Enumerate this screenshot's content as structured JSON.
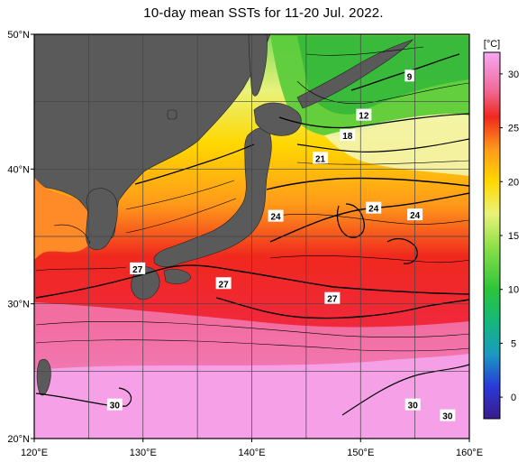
{
  "title": "10-day mean SSTs for 11-20 Jul. 2022.",
  "map": {
    "lon_range": [
      120,
      160
    ],
    "lat_range": [
      20,
      50
    ],
    "lon_ticks": [
      {
        "value": 120,
        "label": "120°E"
      },
      {
        "value": 130,
        "label": "130°E"
      },
      {
        "value": 140,
        "label": "140°E"
      },
      {
        "value": 150,
        "label": "150°E"
      },
      {
        "value": 160,
        "label": "160°E"
      }
    ],
    "lat_ticks": [
      {
        "value": 20,
        "label": "20°N"
      },
      {
        "value": 30,
        "label": "30°N"
      },
      {
        "value": 40,
        "label": "40°N"
      },
      {
        "value": 50,
        "label": "50°N"
      }
    ],
    "land_color": "#5a5a5a",
    "contour_labels": [
      {
        "text": "9",
        "lon": 154.5,
        "lat": 46.9
      },
      {
        "text": "12",
        "lon": 150.3,
        "lat": 44.0
      },
      {
        "text": "18",
        "lon": 148.8,
        "lat": 42.5
      },
      {
        "text": "21",
        "lon": 146.3,
        "lat": 40.8
      },
      {
        "text": "24",
        "lon": 142.2,
        "lat": 36.5
      },
      {
        "text": "24",
        "lon": 151.2,
        "lat": 37.1
      },
      {
        "text": "24",
        "lon": 155.0,
        "lat": 36.6
      },
      {
        "text": "27",
        "lon": 129.5,
        "lat": 32.6
      },
      {
        "text": "27",
        "lon": 137.4,
        "lat": 31.5
      },
      {
        "text": "27",
        "lon": 147.4,
        "lat": 30.4
      },
      {
        "text": "30",
        "lon": 127.4,
        "lat": 22.5
      },
      {
        "text": "30",
        "lon": 154.8,
        "lat": 22.5
      },
      {
        "text": "30",
        "lon": 158.0,
        "lat": 21.7
      }
    ]
  },
  "colorbar": {
    "unit": "[°C]",
    "range": [
      -2,
      32
    ],
    "ticks": [
      {
        "value": 0,
        "label": "0"
      },
      {
        "value": 5,
        "label": "5"
      },
      {
        "value": 10,
        "label": "10"
      },
      {
        "value": 15,
        "label": "15"
      },
      {
        "value": 20,
        "label": "20"
      },
      {
        "value": 25,
        "label": "25"
      },
      {
        "value": 30,
        "label": "30"
      }
    ],
    "stops": [
      {
        "value": -2,
        "color": "#3a1a8c"
      },
      {
        "value": 1,
        "color": "#2a3ad8"
      },
      {
        "value": 4,
        "color": "#1a9ac0"
      },
      {
        "value": 7,
        "color": "#14b87a"
      },
      {
        "value": 10,
        "color": "#2cc43a"
      },
      {
        "value": 14,
        "color": "#8ee04a"
      },
      {
        "value": 17,
        "color": "#e9f27a"
      },
      {
        "value": 20,
        "color": "#ffd800"
      },
      {
        "value": 23,
        "color": "#ff9a1a"
      },
      {
        "value": 26,
        "color": "#f0281e"
      },
      {
        "value": 28.5,
        "color": "#f06a9a"
      },
      {
        "value": 32,
        "color": "#f6a8f4"
      }
    ]
  }
}
